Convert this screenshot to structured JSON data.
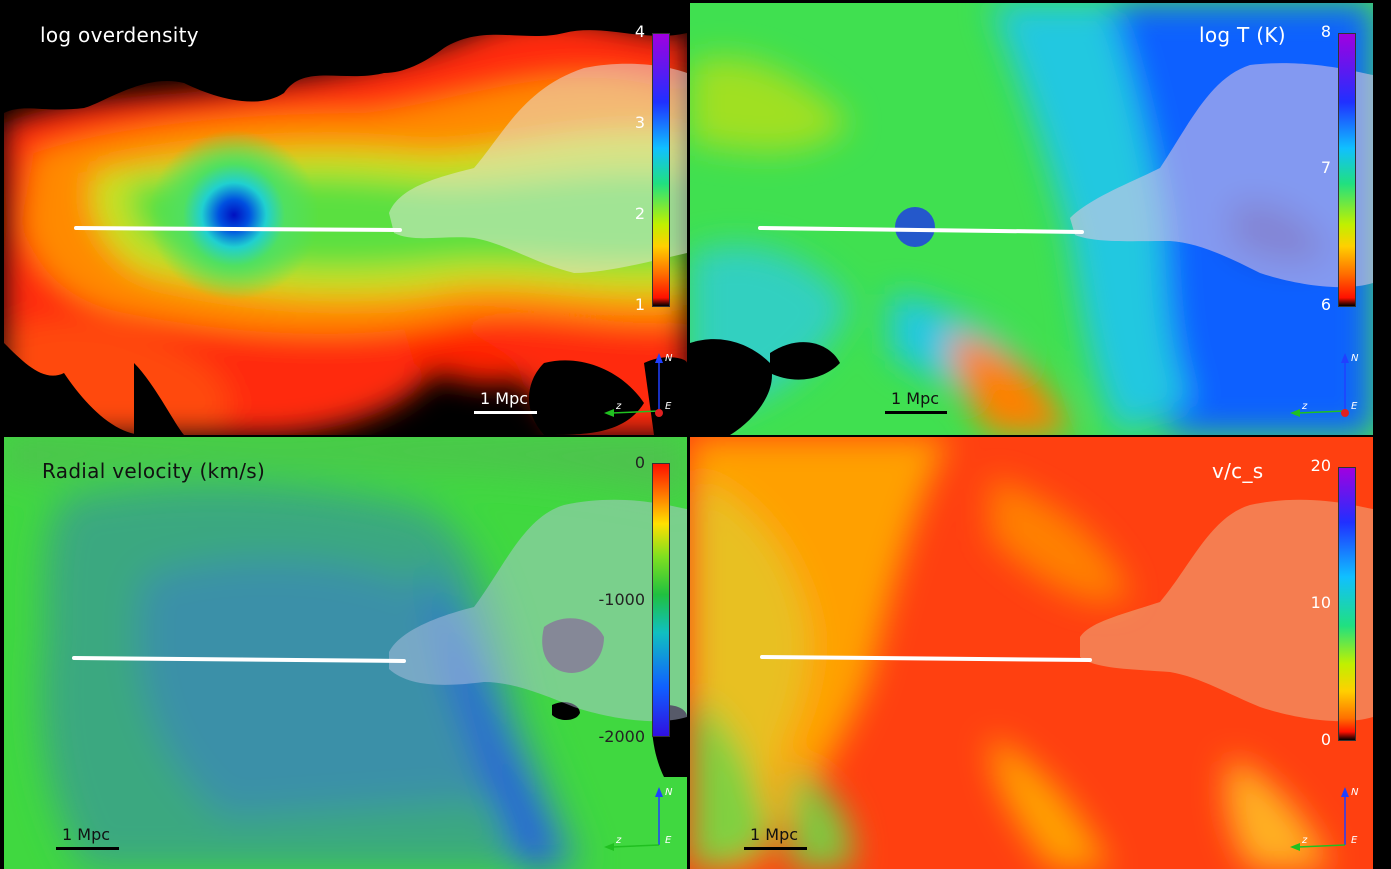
{
  "panels": [
    {
      "title": "log overdensity",
      "colorbar_ticks": [
        "4",
        "3",
        "2",
        "1"
      ],
      "scale_label": "1 Mpc",
      "axes": {
        "n": "N",
        "z": "z",
        "e": "E"
      }
    },
    {
      "title": "log T (K)",
      "colorbar_ticks": [
        "8",
        "7",
        "6"
      ],
      "scale_label": "1 Mpc",
      "axes": {
        "n": "N",
        "z": "z",
        "e": "E"
      }
    },
    {
      "title": "Radial velocity (km/s)",
      "colorbar_ticks": [
        "0",
        "-1000",
        "-2000"
      ],
      "scale_label": "1 Mpc",
      "axes": {
        "n": "N",
        "z": "z",
        "e": "E"
      }
    },
    {
      "title": "v/c_s",
      "colorbar_ticks": [
        "20",
        "10",
        "0"
      ],
      "scale_label": "1 Mpc",
      "axes": {
        "n": "N",
        "z": "z",
        "e": "E"
      }
    }
  ]
}
